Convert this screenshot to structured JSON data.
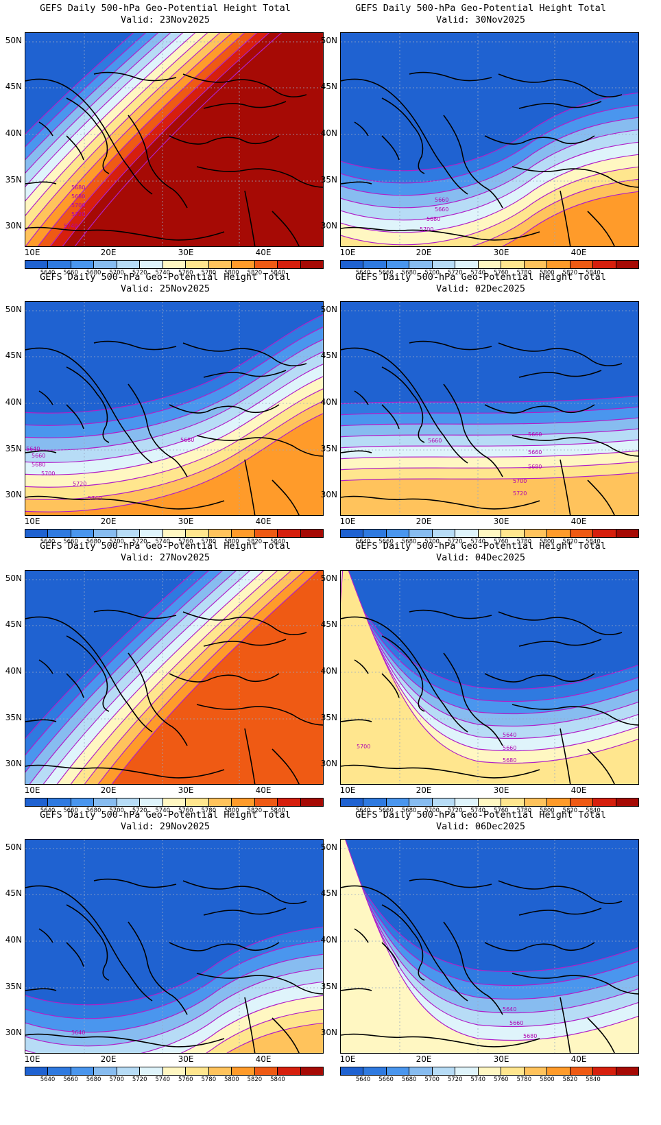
{
  "legend_colors": [
    "#1f62d1",
    "#2f7ae0",
    "#4a96ee",
    "#87bcf0",
    "#b7dcf6",
    "#dff4fb",
    "#fff7c2",
    "#ffe68e",
    "#ffc35c",
    "#ff9b2a",
    "#ef5a14",
    "#d61f0d",
    "#a60a05"
  ],
  "legend_labels": [
    "5640",
    "5660",
    "5680",
    "5700",
    "5720",
    "5740",
    "5760",
    "5780",
    "5800",
    "5820",
    "5840"
  ],
  "y_ticks": [
    "50N",
    "45N",
    "40N",
    "35N",
    "30N"
  ],
  "x_ticks": [
    "10E",
    "20E",
    "30E",
    "40E"
  ],
  "panels": [
    {
      "title": "GEFS Daily 500-hPa Geo-Potential Height Total",
      "valid": "Valid: 23Nov2025",
      "contour_labels": [
        "5680",
        "5680",
        "5700",
        "5720",
        "5740"
      ]
    },
    {
      "title": "GEFS Daily 500-hPa Geo-Potential Height Total",
      "valid": "Valid: 30Nov2025",
      "contour_labels": [
        "5660",
        "5660",
        "5680",
        "5700"
      ]
    },
    {
      "title": "GEFS Daily 500-hPa Geo-Potential Height Total",
      "valid": "Valid: 25Nov2025",
      "contour_labels": [
        "5640",
        "5660",
        "5680",
        "5700",
        "5720",
        "5740",
        "5680"
      ]
    },
    {
      "title": "GEFS Daily 500-hPa Geo-Potential Height Total",
      "valid": "Valid: 02Dec2025",
      "contour_labels": [
        "5660",
        "5660",
        "5660",
        "5680",
        "5700",
        "5720"
      ]
    },
    {
      "title": "GEFS Daily 500-hPa Geo-Potential Height Total",
      "valid": "Valid: 27Nov2025",
      "contour_labels": []
    },
    {
      "title": "GEFS Daily 500-hPa Geo-Potential Height Total",
      "valid": "Valid: 04Dec2025",
      "contour_labels": [
        "5700",
        "5640",
        "5660",
        "5680"
      ]
    },
    {
      "title": "GEFS Daily 500-hPa Geo-Potential Height Total",
      "valid": "Valid: 29Nov2025",
      "contour_labels": [
        "5640"
      ]
    },
    {
      "title": "GEFS Daily 500-hPa Geo-Potential Height Total",
      "valid": "Valid: 06Dec2025",
      "contour_labels": [
        "5640",
        "5660",
        "5680"
      ]
    }
  ]
}
